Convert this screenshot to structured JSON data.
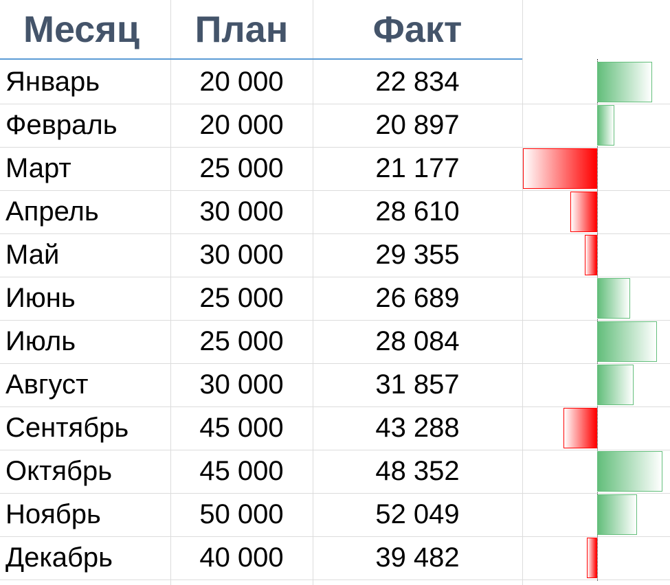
{
  "columns": {
    "month": "Месяц",
    "plan": "План",
    "fact": "Факт"
  },
  "rows": [
    {
      "month": "Январь",
      "plan": "20 000",
      "fact": "22 834",
      "diff": 2834
    },
    {
      "month": "Февраль",
      "plan": "20 000",
      "fact": "20 897",
      "diff": 897
    },
    {
      "month": "Март",
      "plan": "25 000",
      "fact": "21 177",
      "diff": -3823
    },
    {
      "month": "Апрель",
      "plan": "30 000",
      "fact": "28 610",
      "diff": -1390
    },
    {
      "month": "Май",
      "plan": "30 000",
      "fact": "29 355",
      "diff": -645
    },
    {
      "month": "Июнь",
      "plan": "25 000",
      "fact": "26 689",
      "diff": 1689
    },
    {
      "month": "Июль",
      "plan": "25 000",
      "fact": "28 084",
      "diff": 3084
    },
    {
      "month": "Август",
      "plan": "30 000",
      "fact": "31 857",
      "diff": 1857
    },
    {
      "month": "Сентябрь",
      "plan": "45 000",
      "fact": "43 288",
      "diff": -1712
    },
    {
      "month": "Октябрь",
      "plan": "45 000",
      "fact": "48 352",
      "diff": 3352
    },
    {
      "month": "Ноябрь",
      "plan": "50 000",
      "fact": "52 049",
      "diff": 2049
    },
    {
      "month": "Декабрь",
      "plan": "40 000",
      "fact": "39 482",
      "diff": -518
    }
  ],
  "colors": {
    "header_text": "#44546a",
    "header_rule": "#5b9bd5",
    "positive_bar": "#63be7b",
    "negative_bar": "#ff0000",
    "gridline": "#dcdcdc"
  }
}
